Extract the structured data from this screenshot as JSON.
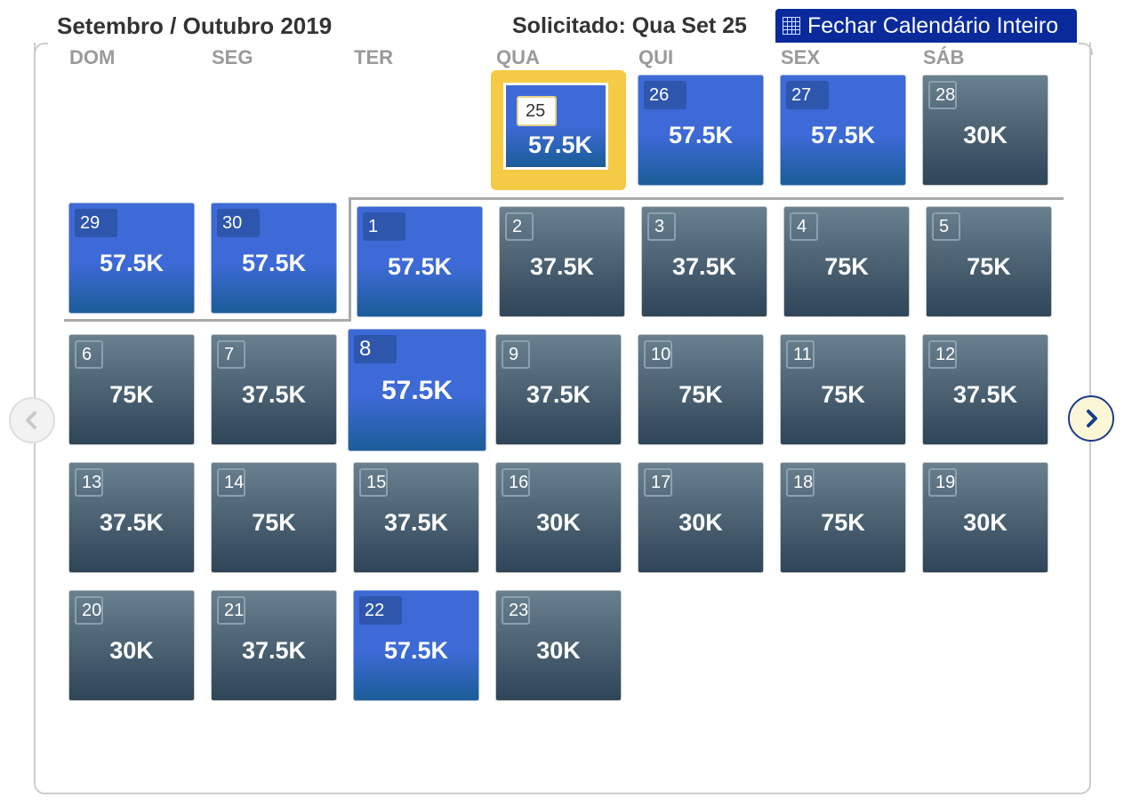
{
  "header": {
    "month_title": "Setembro / Outubro 2019",
    "requested": "Solicitado: Qua Set 25",
    "close_button": "Fechar Calendário Inteiro"
  },
  "weekdays": [
    "DOM",
    "SEG",
    "TER",
    "QUA",
    "QUI",
    "SEX",
    "SÁB"
  ],
  "selected": {
    "day": "25",
    "price": "57.5K"
  },
  "days": [
    {
      "day": "26",
      "price": "57.5K",
      "style": "blue"
    },
    {
      "day": "27",
      "price": "57.5K",
      "style": "blue"
    },
    {
      "day": "28",
      "price": "30K",
      "style": "gray"
    },
    {
      "day": "29",
      "price": "57.5K",
      "style": "blue"
    },
    {
      "day": "30",
      "price": "57.5K",
      "style": "blue"
    },
    {
      "day": "1",
      "price": "57.5K",
      "style": "blue"
    },
    {
      "day": "2",
      "price": "37.5K",
      "style": "gray"
    },
    {
      "day": "3",
      "price": "37.5K",
      "style": "gray"
    },
    {
      "day": "4",
      "price": "75K",
      "style": "gray"
    },
    {
      "day": "5",
      "price": "75K",
      "style": "gray"
    },
    {
      "day": "6",
      "price": "75K",
      "style": "gray"
    },
    {
      "day": "7",
      "price": "37.5K",
      "style": "gray"
    },
    {
      "day": "8",
      "price": "57.5K",
      "style": "blue"
    },
    {
      "day": "9",
      "price": "37.5K",
      "style": "gray"
    },
    {
      "day": "10",
      "price": "75K",
      "style": "gray"
    },
    {
      "day": "11",
      "price": "75K",
      "style": "gray"
    },
    {
      "day": "12",
      "price": "37.5K",
      "style": "gray"
    },
    {
      "day": "13",
      "price": "37.5K",
      "style": "gray"
    },
    {
      "day": "14",
      "price": "75K",
      "style": "gray"
    },
    {
      "day": "15",
      "price": "37.5K",
      "style": "gray"
    },
    {
      "day": "16",
      "price": "30K",
      "style": "gray"
    },
    {
      "day": "17",
      "price": "30K",
      "style": "gray"
    },
    {
      "day": "18",
      "price": "75K",
      "style": "gray"
    },
    {
      "day": "19",
      "price": "30K",
      "style": "gray"
    },
    {
      "day": "20",
      "price": "30K",
      "style": "gray"
    },
    {
      "day": "21",
      "price": "37.5K",
      "style": "gray"
    },
    {
      "day": "22",
      "price": "57.5K",
      "style": "blue"
    },
    {
      "day": "23",
      "price": "30K",
      "style": "gray"
    }
  ],
  "nav": {
    "prev_icon": "chevron-left-icon",
    "next_icon": "chevron-right-icon"
  }
}
